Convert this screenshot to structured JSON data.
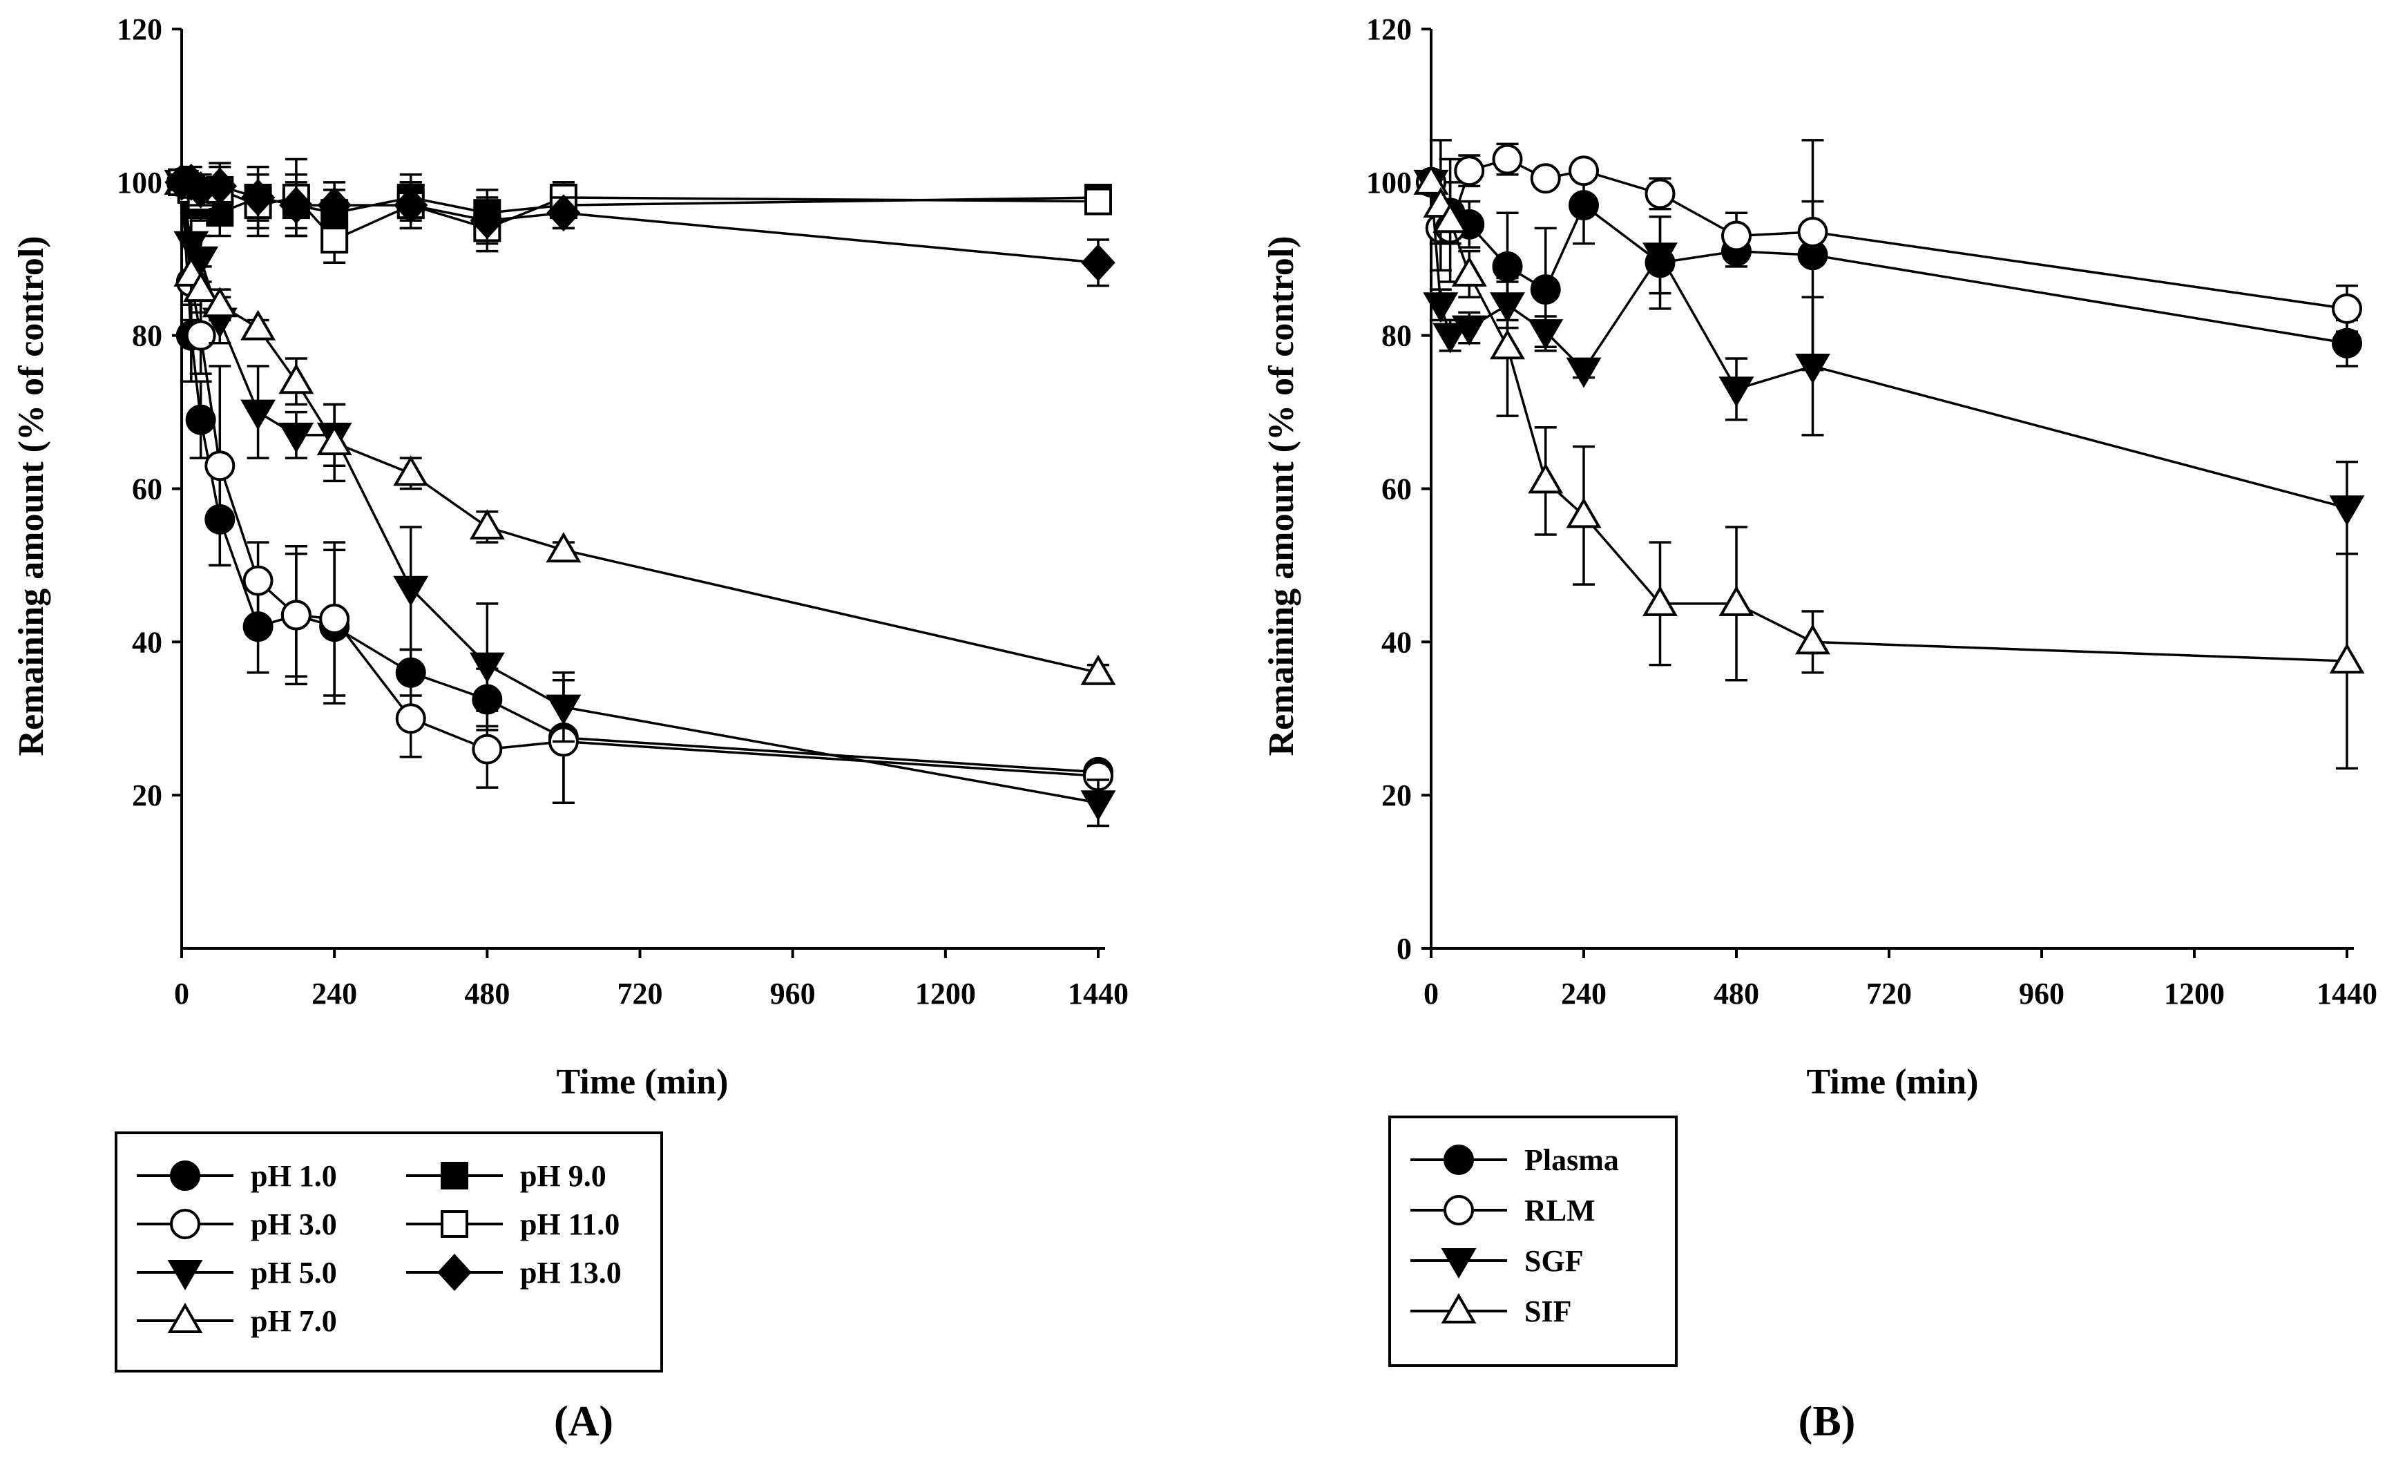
{
  "chart_data": [
    {
      "type": "line",
      "panel_label": "(A)",
      "xlabel": "Time (min)",
      "ylabel": "Remaining amount (% of control)",
      "xlim": [
        0,
        1440
      ],
      "ylim": [
        0,
        120
      ],
      "xticks": [
        0,
        240,
        480,
        720,
        960,
        1200,
        1440
      ],
      "yticks": [
        20,
        40,
        60,
        80,
        100,
        120
      ],
      "legend_columns": 2,
      "series": [
        {
          "name": "pH 1.0",
          "marker": "circle",
          "filled": true,
          "x": [
            0,
            15,
            30,
            60,
            120,
            180,
            240,
            360,
            480,
            600,
            1440
          ],
          "y": [
            100,
            80,
            69,
            56,
            42,
            43.5,
            42,
            36,
            32.5,
            27.5,
            23
          ],
          "err": [
            1,
            6,
            5,
            6,
            6,
            9,
            10,
            3,
            4,
            8.5,
            1
          ]
        },
        {
          "name": "pH 3.0",
          "marker": "circle",
          "filled": false,
          "x": [
            0,
            15,
            30,
            60,
            120,
            180,
            240,
            360,
            480,
            600,
            1440
          ],
          "y": [
            100,
            87,
            80,
            63,
            48,
            43.5,
            43,
            30,
            26,
            27,
            22.5
          ],
          "err": [
            1,
            5,
            5,
            13,
            5,
            8,
            10,
            5,
            5,
            8,
            1
          ]
        },
        {
          "name": "pH 5.0",
          "marker": "triangle-down",
          "filled": true,
          "x": [
            0,
            15,
            30,
            60,
            120,
            180,
            240,
            360,
            480,
            600,
            1440
          ],
          "y": [
            100,
            92,
            90,
            82,
            70,
            67,
            67,
            47,
            37,
            31.5,
            19
          ],
          "err": [
            1,
            4,
            3,
            3,
            6,
            3,
            4,
            8,
            8,
            4.5,
            3
          ]
        },
        {
          "name": "pH 7.0",
          "marker": "triangle-up",
          "filled": false,
          "x": [
            0,
            15,
            30,
            60,
            120,
            180,
            240,
            360,
            480,
            600,
            1440
          ],
          "y": [
            100,
            88,
            86,
            84,
            81,
            74,
            66,
            62,
            55,
            52,
            36
          ],
          "err": [
            1,
            4,
            3,
            2,
            1,
            3,
            5,
            2,
            2,
            1,
            1
          ]
        },
        {
          "name": "pH 9.0",
          "marker": "square",
          "filled": true,
          "x": [
            0,
            15,
            30,
            60,
            120,
            180,
            240,
            360,
            480,
            600,
            1440
          ],
          "y": [
            100,
            99,
            97,
            96,
            98,
            97,
            96,
            98,
            96,
            97,
            98
          ],
          "err": [
            1,
            2,
            2,
            3,
            4,
            4,
            3,
            3,
            3,
            3,
            1
          ]
        },
        {
          "name": "pH 11.0",
          "marker": "square",
          "filled": false,
          "x": [
            0,
            15,
            30,
            60,
            120,
            180,
            240,
            360,
            480,
            600,
            1440
          ],
          "y": [
            100,
            99,
            98,
            99,
            97,
            98,
            92.5,
            97,
            94,
            98,
            97.5
          ],
          "err": [
            1,
            2,
            2,
            3,
            4,
            5,
            3,
            3,
            3,
            2,
            1
          ]
        },
        {
          "name": "pH 13.0",
          "marker": "diamond",
          "filled": true,
          "x": [
            0,
            15,
            30,
            60,
            120,
            180,
            240,
            360,
            480,
            600,
            1440
          ],
          "y": [
            100,
            100,
            99,
            99.5,
            98,
            97,
            97,
            97,
            95,
            96,
            89.5
          ],
          "err": [
            1,
            2,
            2,
            3,
            3,
            3,
            3,
            3,
            3,
            2,
            3
          ]
        }
      ]
    },
    {
      "type": "line",
      "panel_label": "(B)",
      "xlabel": "Time (min)",
      "ylabel": "Remaining amount (% of control)",
      "xlim": [
        0,
        1440
      ],
      "ylim": [
        0,
        120
      ],
      "xticks": [
        0,
        240,
        480,
        720,
        960,
        1200,
        1440
      ],
      "yticks": [
        0,
        20,
        40,
        60,
        80,
        100,
        120
      ],
      "legend_columns": 1,
      "series": [
        {
          "name": "Plasma",
          "marker": "circle",
          "filled": true,
          "x": [
            0,
            15,
            30,
            60,
            120,
            180,
            240,
            360,
            480,
            600,
            1440
          ],
          "y": [
            100,
            94,
            96,
            94.5,
            89,
            86,
            97,
            89.5,
            91,
            90.5,
            79
          ],
          "err": [
            1,
            2,
            4,
            3,
            7,
            8,
            5,
            6,
            2,
            15,
            3
          ]
        },
        {
          "name": "RLM",
          "marker": "circle",
          "filled": false,
          "x": [
            0,
            15,
            30,
            60,
            120,
            180,
            240,
            360,
            480,
            600,
            1440
          ],
          "y": [
            100,
            94,
            94,
            101.5,
            103,
            100.5,
            101.5,
            98.5,
            93,
            93.5,
            83.5
          ],
          "err": [
            1,
            2,
            2,
            2,
            2,
            1,
            1,
            2,
            3,
            4,
            3
          ]
        },
        {
          "name": "SGF",
          "marker": "triangle-down",
          "filled": true,
          "x": [
            0,
            15,
            30,
            60,
            120,
            180,
            240,
            360,
            480,
            600,
            1440
          ],
          "y": [
            100,
            84,
            80,
            81,
            84,
            80.5,
            75.5,
            90.5,
            73,
            76,
            57.5
          ],
          "err": [
            1,
            2,
            2,
            2,
            3,
            2,
            1,
            5,
            4,
            9,
            6
          ]
        },
        {
          "name": "SIF",
          "marker": "triangle-up",
          "filled": false,
          "x": [
            0,
            15,
            30,
            60,
            120,
            180,
            240,
            360,
            480,
            600,
            1440
          ],
          "y": [
            100,
            97,
            95,
            88,
            78.5,
            61,
            56.5,
            45,
            45,
            40,
            37.5
          ],
          "err": [
            1,
            8.5,
            8,
            3,
            9,
            7,
            9,
            8,
            10,
            4,
            14
          ]
        }
      ]
    }
  ]
}
